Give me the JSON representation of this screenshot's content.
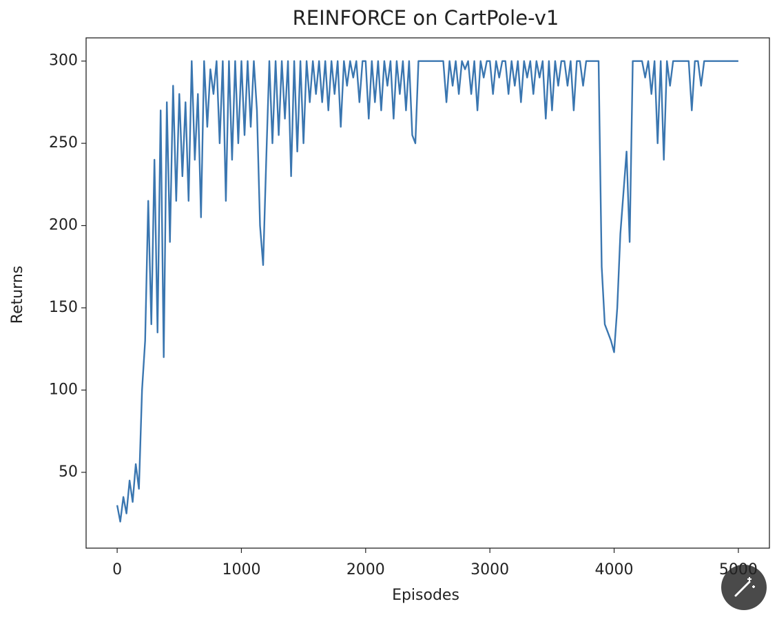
{
  "chart_data": {
    "type": "line",
    "title": "REINFORCE on CartPole-v1",
    "x_label": "Episodes",
    "y_label": "Returns",
    "xlim": [
      -250,
      5250
    ],
    "ylim": [
      3.9,
      314.1
    ],
    "xticks": [
      0,
      1000,
      2000,
      3000,
      4000,
      5000
    ],
    "yticks": [
      50,
      100,
      150,
      200,
      250,
      300
    ],
    "grid": false,
    "x": [
      0,
      25,
      50,
      75,
      100,
      125,
      150,
      175,
      200,
      225,
      250,
      275,
      300,
      325,
      350,
      375,
      400,
      425,
      450,
      475,
      500,
      525,
      550,
      575,
      600,
      625,
      650,
      675,
      700,
      725,
      750,
      775,
      800,
      825,
      850,
      875,
      900,
      925,
      950,
      975,
      1000,
      1025,
      1050,
      1075,
      1100,
      1125,
      1150,
      1175,
      1200,
      1225,
      1250,
      1275,
      1300,
      1325,
      1350,
      1375,
      1400,
      1425,
      1450,
      1475,
      1500,
      1525,
      1550,
      1575,
      1600,
      1625,
      1650,
      1675,
      1700,
      1725,
      1750,
      1775,
      1800,
      1825,
      1850,
      1875,
      1900,
      1925,
      1950,
      1975,
      2000,
      2025,
      2050,
      2075,
      2100,
      2125,
      2150,
      2175,
      2200,
      2225,
      2250,
      2275,
      2300,
      2325,
      2350,
      2375,
      2400,
      2425,
      2450,
      2475,
      2500,
      2525,
      2550,
      2575,
      2600,
      2625,
      2650,
      2675,
      2700,
      2725,
      2750,
      2775,
      2800,
      2825,
      2850,
      2875,
      2900,
      2925,
      2950,
      2975,
      3000,
      3025,
      3050,
      3075,
      3100,
      3125,
      3150,
      3175,
      3200,
      3225,
      3250,
      3275,
      3300,
      3325,
      3350,
      3375,
      3400,
      3425,
      3450,
      3475,
      3500,
      3525,
      3550,
      3575,
      3600,
      3625,
      3650,
      3675,
      3700,
      3725,
      3750,
      3775,
      3800,
      3825,
      3850,
      3875,
      3900,
      3925,
      3950,
      3975,
      4000,
      4025,
      4050,
      4075,
      4100,
      4125,
      4150,
      4175,
      4200,
      4225,
      4250,
      4275,
      4300,
      4325,
      4350,
      4375,
      4400,
      4425,
      4450,
      4475,
      4500,
      4525,
      4550,
      4575,
      4600,
      4625,
      4650,
      4675,
      4700,
      4725,
      4750,
      4775,
      4800,
      4825,
      4850,
      4875,
      4900,
      4925,
      4950,
      4975,
      5000
    ],
    "series": [
      {
        "name": "Returns",
        "color": "#3a76b0",
        "values": [
          30,
          20,
          35,
          25,
          45,
          32,
          55,
          40,
          100,
          130,
          215,
          140,
          240,
          135,
          270,
          120,
          275,
          190,
          285,
          215,
          280,
          230,
          275,
          215,
          300,
          240,
          280,
          205,
          300,
          260,
          295,
          280,
          300,
          250,
          300,
          215,
          300,
          240,
          300,
          250,
          300,
          255,
          300,
          260,
          300,
          270,
          200,
          176,
          240,
          300,
          250,
          300,
          255,
          300,
          265,
          300,
          230,
          300,
          245,
          300,
          250,
          300,
          275,
          300,
          280,
          300,
          275,
          300,
          270,
          300,
          280,
          300,
          260,
          300,
          285,
          300,
          290,
          300,
          275,
          300,
          300,
          265,
          300,
          275,
          300,
          270,
          300,
          285,
          300,
          265,
          300,
          280,
          300,
          270,
          300,
          255,
          250,
          300,
          300,
          300,
          300,
          300,
          300,
          300,
          300,
          300,
          275,
          300,
          285,
          300,
          280,
          300,
          295,
          300,
          280,
          300,
          270,
          300,
          290,
          300,
          300,
          280,
          300,
          290,
          300,
          300,
          280,
          300,
          285,
          300,
          275,
          300,
          290,
          300,
          280,
          300,
          290,
          300,
          265,
          300,
          270,
          300,
          285,
          300,
          300,
          285,
          300,
          270,
          300,
          300,
          285,
          300,
          300,
          300,
          300,
          300,
          175,
          140,
          135,
          130,
          123,
          150,
          195,
          220,
          245,
          190,
          300,
          300,
          300,
          300,
          290,
          300,
          280,
          300,
          250,
          300,
          240,
          300,
          285,
          300,
          300,
          300,
          300,
          300,
          300,
          270,
          300,
          300,
          285,
          300,
          300,
          300,
          300,
          300,
          300,
          300,
          300,
          300,
          300,
          300,
          300
        ]
      }
    ]
  }
}
